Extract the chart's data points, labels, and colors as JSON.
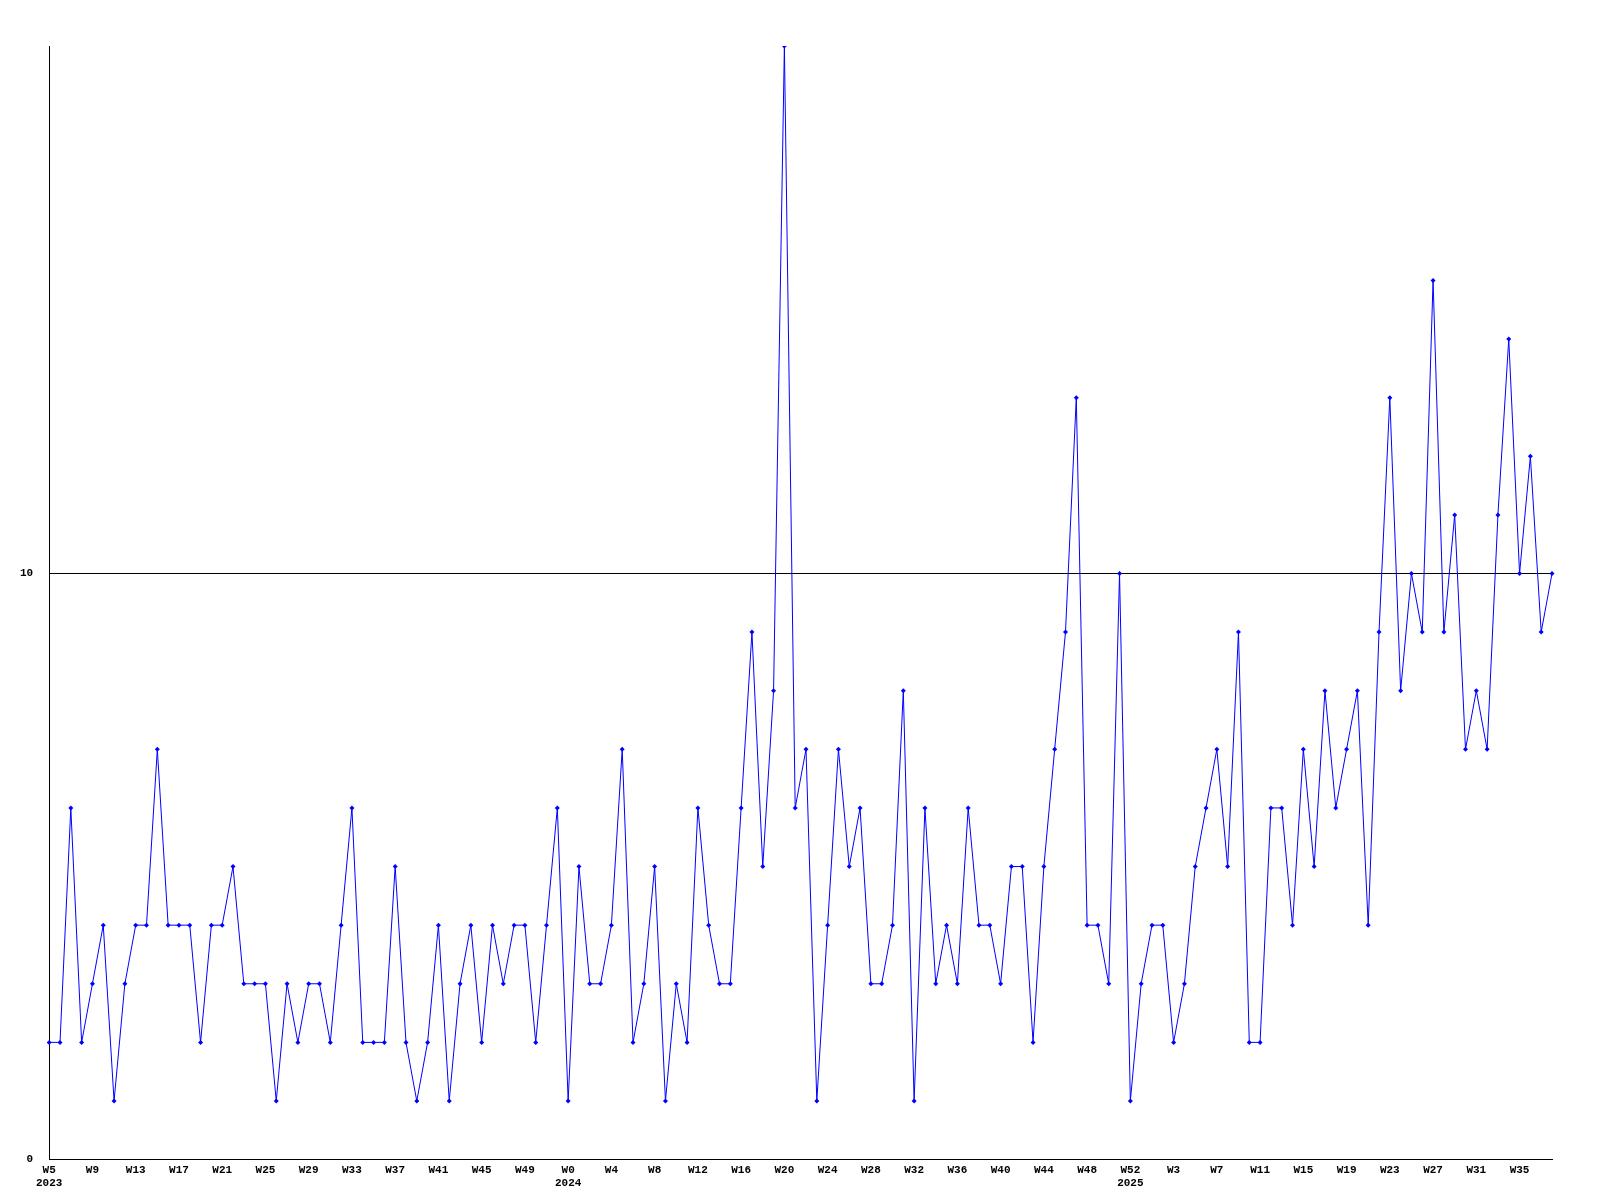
{
  "chart_data": {
    "type": "line",
    "categories": [
      "W5\n2023",
      null,
      null,
      null,
      "W9",
      null,
      null,
      null,
      "W13",
      null,
      null,
      null,
      "W17",
      null,
      null,
      null,
      "W21",
      null,
      null,
      null,
      "W25",
      null,
      null,
      null,
      "W29",
      null,
      null,
      null,
      "W33",
      null,
      null,
      null,
      "W37",
      null,
      null,
      null,
      "W41",
      null,
      null,
      null,
      "W45",
      null,
      null,
      null,
      "W49",
      null,
      null,
      null,
      "W0\n2024",
      null,
      null,
      null,
      "W4",
      null,
      null,
      null,
      "W8",
      null,
      null,
      null,
      "W12",
      null,
      null,
      null,
      "W16",
      null,
      null,
      null,
      "W20",
      null,
      null,
      null,
      "W24",
      null,
      null,
      null,
      "W28",
      null,
      null,
      null,
      "W32",
      null,
      null,
      null,
      "W36",
      null,
      null,
      null,
      "W40",
      null,
      null,
      null,
      "W44",
      null,
      null,
      null,
      "W48",
      null,
      null,
      null,
      "W52\n2025",
      null,
      null,
      null,
      "W3",
      null,
      null,
      null,
      "W7",
      null,
      null,
      null,
      "W11",
      null,
      null,
      null,
      "W15",
      null,
      null,
      null,
      "W19",
      null,
      null,
      null,
      "W23",
      null,
      null,
      null,
      "W27",
      null,
      null,
      null,
      "W31",
      null,
      null,
      null,
      "W35",
      null,
      null,
      null
    ],
    "series": [
      {
        "color": "#0000ff",
        "values": [
          2,
          2,
          6,
          2,
          3,
          4,
          1,
          3,
          4,
          4,
          7,
          4,
          4,
          4,
          2,
          4,
          4,
          5,
          3,
          3,
          3,
          1,
          3,
          2,
          3,
          3,
          2,
          4,
          6,
          2,
          2,
          2,
          5,
          2,
          1,
          2,
          4,
          1,
          3,
          4,
          2,
          4,
          3,
          4,
          4,
          2,
          4,
          6,
          1,
          5,
          3,
          3,
          4,
          7,
          2,
          3,
          5,
          1,
          3,
          2,
          6,
          4,
          3,
          3,
          6,
          9,
          5,
          8,
          19,
          6,
          7,
          1,
          4,
          7,
          5,
          6,
          3,
          3,
          4,
          8,
          1,
          6,
          3,
          4,
          3,
          6,
          4,
          4,
          3,
          5,
          5,
          2,
          5,
          7,
          9,
          13,
          4,
          4,
          3,
          10,
          1,
          3,
          4,
          4,
          2,
          3,
          5,
          6,
          7,
          5,
          9,
          2,
          2,
          6,
          6,
          4,
          7,
          5,
          8,
          6,
          7,
          8,
          4,
          9,
          13,
          8,
          10,
          9,
          15,
          9,
          11,
          7,
          8,
          7,
          11,
          14,
          10,
          12,
          9,
          10
        ]
      }
    ],
    "ylim": [
      0,
      19
    ],
    "yticks": [
      0,
      10
    ],
    "grid": "y",
    "legend": false,
    "marker": "diamond",
    "line_style": "solid"
  }
}
